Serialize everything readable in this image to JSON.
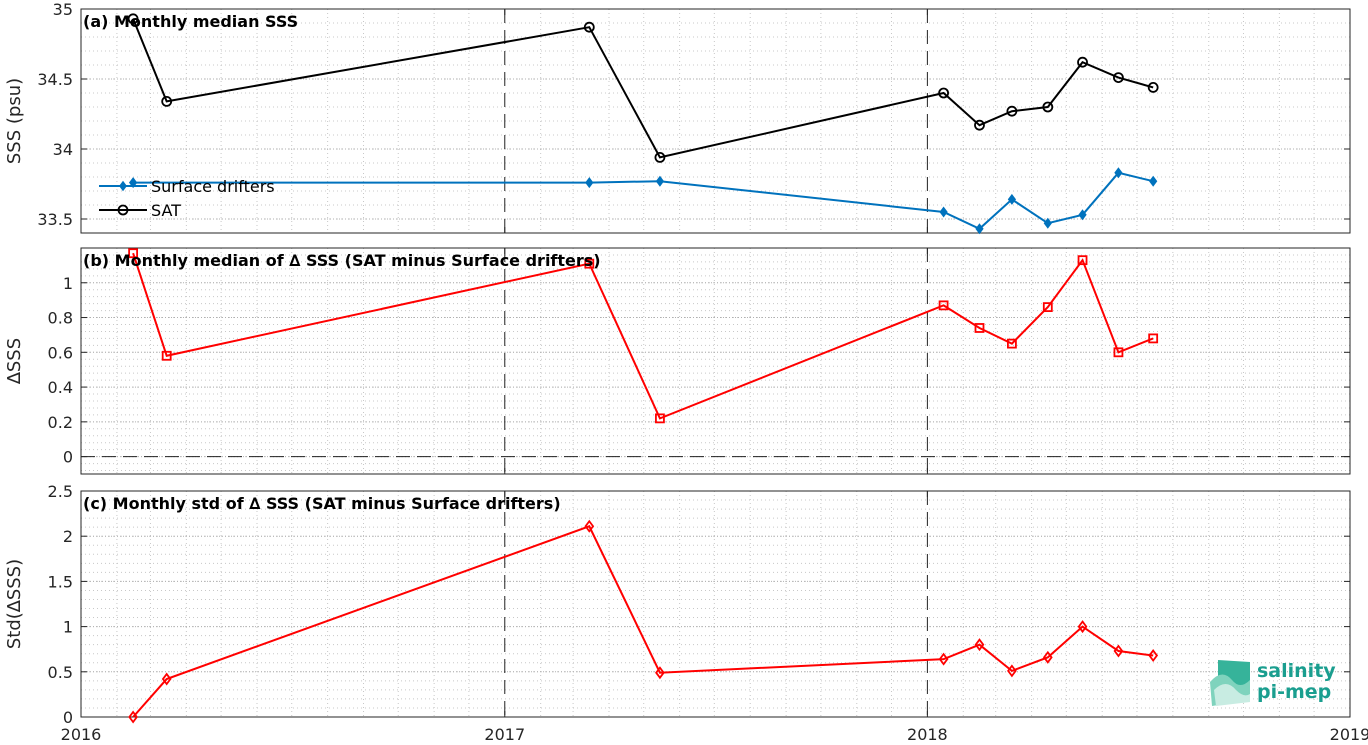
{
  "chart_data": [
    {
      "panel": "a",
      "type": "line",
      "title": "(a) Monthly median SSS",
      "ylabel": "SSS (psu)",
      "ylim": [
        33.4,
        35
      ],
      "yticks": [
        "33.5",
        "34",
        "34.5",
        "35"
      ],
      "grid": true,
      "legend_placement": "lower-left",
      "series": [
        {
          "name": "Surface drifters",
          "color": "#0072BD",
          "marker": "diamond",
          "x": [
            "2016-02-15",
            "2017-03-15",
            "2017-05-15",
            "2018-01-15",
            "2018-02-15",
            "2018-03-15",
            "2018-04-15",
            "2018-05-15",
            "2018-06-15",
            "2018-07-15"
          ],
          "y": [
            33.76,
            33.76,
            33.77,
            33.55,
            33.43,
            33.64,
            33.47,
            33.53,
            33.83,
            33.77
          ]
        },
        {
          "name": "SAT",
          "color": "#000000",
          "marker": "circle",
          "x": [
            "2016-02-15",
            "2016-03-15",
            "2017-03-15",
            "2017-05-15",
            "2018-01-15",
            "2018-02-15",
            "2018-03-15",
            "2018-04-15",
            "2018-05-15",
            "2018-06-15",
            "2018-07-15"
          ],
          "y": [
            34.93,
            34.34,
            34.87,
            33.94,
            34.4,
            34.17,
            34.27,
            34.3,
            34.62,
            34.51,
            34.44
          ]
        }
      ]
    },
    {
      "panel": "b",
      "type": "line",
      "title": "(b) Monthly median of ∆ SSS (SAT minus Surface drifters)",
      "ylabel": "∆SSS",
      "ylim": [
        -0.1,
        1.2
      ],
      "yticks": [
        "0",
        "0.2",
        "0.4",
        "0.6",
        "0.8",
        "1"
      ],
      "grid": true,
      "series": [
        {
          "color": "#FF0000",
          "marker": "square",
          "x": [
            "2016-02-15",
            "2016-03-15",
            "2017-03-15",
            "2017-05-15",
            "2018-01-15",
            "2018-02-15",
            "2018-03-15",
            "2018-04-15",
            "2018-05-15",
            "2018-06-15",
            "2018-07-15"
          ],
          "y": [
            1.17,
            0.58,
            1.11,
            0.22,
            0.87,
            0.74,
            0.65,
            0.86,
            1.13,
            0.6,
            0.68
          ]
        }
      ]
    },
    {
      "panel": "c",
      "type": "line",
      "title": "(c) Monthly std of ∆ SSS (SAT minus Surface drifters)",
      "ylabel": "Std(∆SSS)",
      "ylim": [
        0,
        2.5
      ],
      "yticks": [
        "0",
        "0.5",
        "1",
        "1.5",
        "2",
        "2.5"
      ],
      "grid": true,
      "series": [
        {
          "color": "#FF0000",
          "marker": "diamond",
          "x": [
            "2016-02-15",
            "2016-03-15",
            "2017-03-15",
            "2017-05-15",
            "2018-01-15",
            "2018-02-15",
            "2018-03-15",
            "2018-04-15",
            "2018-05-15",
            "2018-06-15",
            "2018-07-15"
          ],
          "y": [
            0.0,
            0.42,
            2.11,
            0.49,
            0.64,
            0.8,
            0.51,
            0.66,
            1.0,
            0.73,
            0.68
          ]
        }
      ]
    }
  ],
  "xaxis": {
    "xlim": [
      "2016-01-01",
      "2019-01-01"
    ],
    "ticks": [
      "2016-01-01",
      "2017-01-01",
      "2018-01-01",
      "2019-01-01"
    ],
    "tick_labels": [
      "2016",
      "2017",
      "2018",
      "2019"
    ]
  },
  "logo": {
    "line1": "salinity",
    "line2": "pi-mep"
  }
}
